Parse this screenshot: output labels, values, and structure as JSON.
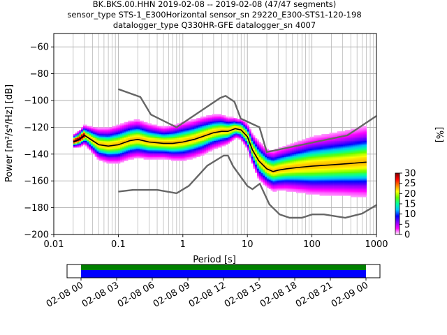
{
  "chart_data": {
    "type": "heatmap",
    "title_lines": [
      "BK.BKS.00.HHN   2019-02-08 -- 2019-02-08  (47/47 segments)",
      "sensor_type STS-1_E300Horizontal sensor_sn 29220_E300-STS1-120-198",
      "datalogger_type Q330HR-GFE datalogger_sn 4007"
    ],
    "xlabel": "Period [s]",
    "ylabel": "Power [m²/s⁴/Hz] [dB]",
    "x_scale": "log",
    "xlim": [
      0.01,
      1000
    ],
    "ylim": [
      -200,
      -50
    ],
    "x_ticks": [
      {
        "value": 0.01,
        "label": "0.01"
      },
      {
        "value": 0.1,
        "label": "0.1"
      },
      {
        "value": 1,
        "label": "1"
      },
      {
        "value": 10,
        "label": "10"
      },
      {
        "value": 100,
        "label": "100"
      },
      {
        "value": 1000,
        "label": "1000"
      }
    ],
    "y_ticks": [
      {
        "value": -60,
        "label": "−60"
      },
      {
        "value": -80,
        "label": "−80"
      },
      {
        "value": -100,
        "label": "−100"
      },
      {
        "value": -120,
        "label": "−120"
      },
      {
        "value": -140,
        "label": "−140"
      },
      {
        "value": -160,
        "label": "−160"
      },
      {
        "value": -180,
        "label": "−180"
      },
      {
        "value": -200,
        "label": "−200"
      }
    ],
    "grid": true,
    "noise_models": [
      {
        "kind": "high",
        "points": [
          [
            0.1,
            -91.5
          ],
          [
            0.22,
            -97.4
          ],
          [
            0.32,
            -110.5
          ],
          [
            0.8,
            -120.0
          ],
          [
            3.8,
            -98.0
          ],
          [
            4.6,
            -96.5
          ],
          [
            6.3,
            -101.0
          ],
          [
            7.9,
            -113.5
          ],
          [
            15.4,
            -120.0
          ],
          [
            20,
            -138.5
          ],
          [
            354.8,
            -126.0
          ],
          [
            1000,
            -111.5
          ]
        ]
      },
      {
        "kind": "low",
        "points": [
          [
            0.1,
            -168.0
          ],
          [
            0.17,
            -166.7
          ],
          [
            0.4,
            -166.7
          ],
          [
            0.8,
            -169.2
          ],
          [
            1.24,
            -163.7
          ],
          [
            2.4,
            -148.6
          ],
          [
            4.3,
            -141.1
          ],
          [
            5.0,
            -141.1
          ],
          [
            6.0,
            -149.0
          ],
          [
            10,
            -163.8
          ],
          [
            12,
            -166.2
          ],
          [
            15.6,
            -162.1
          ],
          [
            21.9,
            -177.5
          ],
          [
            31.6,
            -185.0
          ],
          [
            45,
            -187.5
          ],
          [
            70,
            -187.5
          ],
          [
            101,
            -185.0
          ],
          [
            154,
            -185.0
          ],
          [
            328,
            -187.5
          ],
          [
            600,
            -184.4
          ],
          [
            1000,
            -178.0
          ]
        ]
      }
    ],
    "mean_curve": [
      [
        0.02,
        -131
      ],
      [
        0.025,
        -129
      ],
      [
        0.03,
        -126
      ],
      [
        0.04,
        -130
      ],
      [
        0.05,
        -133
      ],
      [
        0.07,
        -134
      ],
      [
        0.1,
        -133
      ],
      [
        0.15,
        -130
      ],
      [
        0.2,
        -129
      ],
      [
        0.3,
        -131
      ],
      [
        0.5,
        -132
      ],
      [
        0.7,
        -132
      ],
      [
        1.0,
        -131
      ],
      [
        1.5,
        -129
      ],
      [
        2.0,
        -127
      ],
      [
        3.0,
        -124
      ],
      [
        4.0,
        -123
      ],
      [
        5.0,
        -123
      ],
      [
        6.5,
        -121
      ],
      [
        8,
        -122
      ],
      [
        10,
        -127
      ],
      [
        12,
        -137
      ],
      [
        15,
        -145
      ],
      [
        20,
        -151
      ],
      [
        25,
        -153
      ],
      [
        30,
        -152
      ],
      [
        40,
        -151
      ],
      [
        60,
        -150
      ],
      [
        100,
        -149
      ],
      [
        200,
        -148
      ],
      [
        400,
        -147
      ],
      [
        700,
        -146
      ]
    ],
    "spread_curve": [
      [
        0.02,
        2
      ],
      [
        0.03,
        3
      ],
      [
        0.05,
        5
      ],
      [
        0.1,
        6
      ],
      [
        0.2,
        6
      ],
      [
        0.5,
        5
      ],
      [
        1,
        6
      ],
      [
        2,
        6
      ],
      [
        4,
        5
      ],
      [
        7,
        3
      ],
      [
        10,
        4
      ],
      [
        15,
        6
      ],
      [
        20,
        6
      ],
      [
        40,
        7
      ],
      [
        100,
        9
      ],
      [
        300,
        10
      ],
      [
        700,
        11
      ]
    ],
    "colorbar": {
      "label": "[%]",
      "range": [
        0,
        30
      ],
      "ticks": [
        {
          "value": 0,
          "label": "0"
        },
        {
          "value": 5,
          "label": "5"
        },
        {
          "value": 10,
          "label": "10"
        },
        {
          "value": 15,
          "label": "15"
        },
        {
          "value": 20,
          "label": "20"
        },
        {
          "value": 25,
          "label": "25"
        },
        {
          "value": 30,
          "label": "30"
        }
      ],
      "colors": [
        "#ffffff",
        "#ff00ff",
        "#8000ff",
        "#0000ff",
        "#00c0ff",
        "#00ffa0",
        "#60ff00",
        "#ffff00",
        "#ff8000",
        "#ff0000",
        "#800000"
      ]
    },
    "timeline": {
      "tick_labels": [
        "02-08 00",
        "02-08 03",
        "02-08 06",
        "02-08 09",
        "02-08 12",
        "02-08 15",
        "02-08 18",
        "02-08 21",
        "02-09 00"
      ],
      "coverage_color": "#008000",
      "segment_color": "#0000ff"
    }
  }
}
